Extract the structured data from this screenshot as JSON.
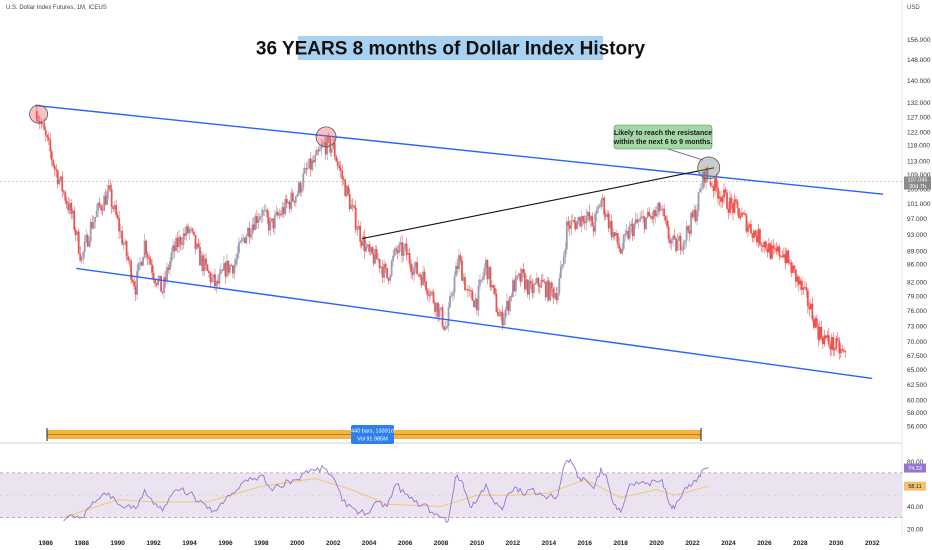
{
  "header": {
    "symbol": "U.S. Dollar Index Futures, 1M, ICEUS",
    "currency": "USD"
  },
  "title": "36 YEARS 8 months of Dollar Index History",
  "annotation": {
    "line1": "Likely to reach the resistance",
    "line2": "within the next 6 to 9 months."
  },
  "range_box": {
    "line1": "440 bars, 13391d",
    "line2": "Vol 91.985M"
  },
  "price_tag": {
    "value": "107.045",
    "sub": "30d 7h"
  },
  "rsi_tags": {
    "rsi": "74.33",
    "ma": "58.11"
  },
  "colors": {
    "up": "#9a9ab0",
    "down": "#ef5350",
    "channel": "#2962ff",
    "trend": "#111111",
    "title_bg": "#a9d2f2",
    "note_bg": "#a5d6a7",
    "rsi_line": "#9575cd",
    "rsi_ma": "#f3c26c",
    "rsi_band": "#ebe3ef",
    "range_bar": "#f5a623",
    "box": "#2f80ed"
  },
  "chart_data": [
    {
      "type": "line",
      "title": "36 YEARS 8 months of Dollar Index History",
      "subtitle": "U.S. Dollar Index Futures, 1M, ICEUS",
      "ylabel": "USD",
      "y_scale": "log",
      "x_ticks": [
        "1986",
        "1988",
        "1990",
        "1992",
        "1994",
        "1996",
        "1998",
        "2000",
        "2002",
        "2004",
        "2006",
        "2008",
        "2010",
        "2012",
        "2014",
        "2016",
        "2018",
        "2020",
        "2022",
        "2024",
        "2026",
        "2028",
        "2030",
        "2032"
      ],
      "y_ticks": [
        "156.000",
        "148.000",
        "140.000",
        "132.000",
        "127.000",
        "122.000",
        "118.000",
        "113.000",
        "109.000",
        "105.000",
        "101.000",
        "97.000",
        "93.000",
        "89.000",
        "86.000",
        "82.000",
        "79.000",
        "76.000",
        "73.000",
        "70.000",
        "67.500",
        "65.000",
        "62.500",
        "60.000",
        "58.000",
        "56.000"
      ],
      "ylim": [
        54.5,
        160
      ],
      "series": [
        {
          "style": "candles",
          "points": [
            [
              1985.5,
              129
            ],
            [
              1986.0,
              120
            ],
            [
              1986.5,
              111
            ],
            [
              1987.0,
              104
            ],
            [
              1987.5,
              97
            ],
            [
              1988.0,
              87
            ],
            [
              1988.5,
              95
            ],
            [
              1989.0,
              100
            ],
            [
              1989.5,
              104
            ],
            [
              1990.0,
              96
            ],
            [
              1990.5,
              88
            ],
            [
              1991.0,
              81
            ],
            [
              1991.5,
              91
            ],
            [
              1992.0,
              84
            ],
            [
              1992.5,
              80
            ],
            [
              1993.0,
              88
            ],
            [
              1993.5,
              92
            ],
            [
              1994.0,
              94
            ],
            [
              1994.5,
              88
            ],
            [
              1995.0,
              84
            ],
            [
              1995.5,
              81
            ],
            [
              1996.0,
              85
            ],
            [
              1996.5,
              86
            ],
            [
              1997.0,
              92
            ],
            [
              1997.5,
              96
            ],
            [
              1998.0,
              99
            ],
            [
              1998.5,
              95
            ],
            [
              1999.0,
              98
            ],
            [
              1999.5,
              101
            ],
            [
              2000.0,
              104
            ],
            [
              2000.5,
              110
            ],
            [
              2001.0,
              113
            ],
            [
              2001.5,
              118
            ],
            [
              2002.0,
              117
            ],
            [
              2002.5,
              108
            ],
            [
              2003.0,
              100
            ],
            [
              2003.5,
              93
            ],
            [
              2004.0,
              88
            ],
            [
              2004.5,
              87
            ],
            [
              2005.0,
              83
            ],
            [
              2005.5,
              89
            ],
            [
              2006.0,
              89
            ],
            [
              2006.5,
              85
            ],
            [
              2007.0,
              83
            ],
            [
              2007.5,
              79
            ],
            [
              2008.0,
              75
            ],
            [
              2008.3,
              72
            ],
            [
              2008.6,
              80
            ],
            [
              2009.0,
              87
            ],
            [
              2009.5,
              79
            ],
            [
              2010.0,
              78
            ],
            [
              2010.5,
              86
            ],
            [
              2011.0,
              78
            ],
            [
              2011.3,
              74
            ],
            [
              2011.7,
              77
            ],
            [
              2012.0,
              81
            ],
            [
              2012.5,
              83
            ],
            [
              2013.0,
              80
            ],
            [
              2013.5,
              82
            ],
            [
              2014.0,
              80
            ],
            [
              2014.5,
              80
            ],
            [
              2014.8,
              87
            ],
            [
              2015.0,
              95
            ],
            [
              2015.5,
              96
            ],
            [
              2016.0,
              98
            ],
            [
              2016.5,
              95
            ],
            [
              2016.9,
              102
            ],
            [
              2017.0,
              101
            ],
            [
              2017.5,
              94
            ],
            [
              2018.0,
              89
            ],
            [
              2018.5,
              94
            ],
            [
              2019.0,
              96
            ],
            [
              2019.5,
              97
            ],
            [
              2020.0,
              98
            ],
            [
              2020.2,
              100
            ],
            [
              2020.6,
              93
            ],
            [
              2021.0,
              90
            ],
            [
              2021.5,
              92
            ],
            [
              2021.9,
              96
            ],
            [
              2022.2,
              99
            ],
            [
              2022.5,
              106
            ],
            [
              2022.7,
              110
            ],
            [
              2022.9,
              107.045
            ]
          ]
        },
        {
          "style": "projection",
          "points": [
            [
              2023.0,
              107
            ],
            [
              2023.5,
              104
            ],
            [
              2024.0,
              101
            ],
            [
              2024.5,
              99
            ],
            [
              2025.0,
              96
            ],
            [
              2025.5,
              93
            ],
            [
              2026.0,
              91
            ],
            [
              2026.5,
              88
            ],
            [
              2027.0,
              89
            ],
            [
              2027.5,
              85
            ],
            [
              2028.0,
              81
            ],
            [
              2028.5,
              77
            ],
            [
              2029.0,
              72
            ],
            [
              2029.5,
              70
            ],
            [
              2030.0,
              69
            ],
            [
              2030.5,
              67.5
            ]
          ]
        },
        {
          "style": "channel-top",
          "points": [
            [
              1985.4,
              131
            ],
            [
              2032.6,
              103.5
            ]
          ]
        },
        {
          "style": "channel-bottom",
          "points": [
            [
              1987.7,
              85
            ],
            [
              2032.0,
              63.5
            ]
          ]
        },
        {
          "style": "trendline",
          "points": [
            [
              2003.6,
              92
            ],
            [
              2023.2,
              111
            ]
          ]
        }
      ]
    },
    {
      "type": "line",
      "title": "RSI",
      "y_ticks": [
        "80.00",
        "60.00",
        "40.00",
        "20.00"
      ],
      "ylim": [
        18,
        86
      ],
      "band": [
        30,
        70
      ],
      "series": [
        {
          "style": "rsi",
          "points": [
            [
              1987.0,
              27
            ],
            [
              1987.5,
              32
            ],
            [
              1988.0,
              30
            ],
            [
              1988.5,
              40
            ],
            [
              1989.0,
              47
            ],
            [
              1989.5,
              52
            ],
            [
              1990.0,
              42
            ],
            [
              1990.5,
              40
            ],
            [
              1991.0,
              38
            ],
            [
              1991.5,
              55
            ],
            [
              1992.0,
              42
            ],
            [
              1992.5,
              36
            ],
            [
              1993.0,
              50
            ],
            [
              1993.5,
              55
            ],
            [
              1994.0,
              52
            ],
            [
              1994.5,
              44
            ],
            [
              1995.0,
              38
            ],
            [
              1995.5,
              36
            ],
            [
              1996.0,
              46
            ],
            [
              1996.5,
              52
            ],
            [
              1997.0,
              62
            ],
            [
              1997.5,
              64
            ],
            [
              1998.0,
              68
            ],
            [
              1998.5,
              56
            ],
            [
              1999.0,
              58
            ],
            [
              1999.5,
              63
            ],
            [
              2000.0,
              64
            ],
            [
              2000.5,
              72
            ],
            [
              2001.0,
              72
            ],
            [
              2001.5,
              74
            ],
            [
              2002.0,
              66
            ],
            [
              2002.5,
              45
            ],
            [
              2003.0,
              40
            ],
            [
              2003.5,
              35
            ],
            [
              2004.0,
              34
            ],
            [
              2004.5,
              44
            ],
            [
              2005.0,
              40
            ],
            [
              2005.5,
              60
            ],
            [
              2006.0,
              51
            ],
            [
              2006.5,
              44
            ],
            [
              2007.0,
              42
            ],
            [
              2007.5,
              35
            ],
            [
              2008.0,
              30
            ],
            [
              2008.4,
              27
            ],
            [
              2008.8,
              66
            ],
            [
              2009.2,
              62
            ],
            [
              2009.6,
              40
            ],
            [
              2010.0,
              45
            ],
            [
              2010.5,
              60
            ],
            [
              2011.0,
              42
            ],
            [
              2011.4,
              37
            ],
            [
              2011.8,
              52
            ],
            [
              2012.2,
              57
            ],
            [
              2012.6,
              50
            ],
            [
              2013.0,
              55
            ],
            [
              2013.5,
              52
            ],
            [
              2014.0,
              49
            ],
            [
              2014.5,
              50
            ],
            [
              2014.9,
              78
            ],
            [
              2015.2,
              82
            ],
            [
              2015.6,
              66
            ],
            [
              2016.0,
              65
            ],
            [
              2016.5,
              56
            ],
            [
              2016.9,
              74
            ],
            [
              2017.2,
              68
            ],
            [
              2017.6,
              42
            ],
            [
              2018.0,
              35
            ],
            [
              2018.5,
              60
            ],
            [
              2019.0,
              60
            ],
            [
              2019.5,
              61
            ],
            [
              2020.0,
              62
            ],
            [
              2020.3,
              64
            ],
            [
              2020.7,
              42
            ],
            [
              2021.0,
              38
            ],
            [
              2021.5,
              54
            ],
            [
              2021.9,
              58
            ],
            [
              2022.2,
              62
            ],
            [
              2022.5,
              72
            ],
            [
              2022.9,
              74.33
            ]
          ]
        },
        {
          "style": "rsi-ma",
          "points": [
            [
              1987.0,
              30
            ],
            [
              1990.0,
              46
            ],
            [
              1992.0,
              44
            ],
            [
              1995.0,
              44
            ],
            [
              1998.0,
              58
            ],
            [
              2001.0,
              65
            ],
            [
              2003.0,
              55
            ],
            [
              2005.0,
              42
            ],
            [
              2008.0,
              40
            ],
            [
              2010.0,
              50
            ],
            [
              2012.0,
              50
            ],
            [
              2014.0,
              52
            ],
            [
              2016.0,
              64
            ],
            [
              2018.0,
              48
            ],
            [
              2020.0,
              55
            ],
            [
              2021.0,
              50
            ],
            [
              2022.9,
              58.11
            ]
          ]
        }
      ]
    }
  ]
}
